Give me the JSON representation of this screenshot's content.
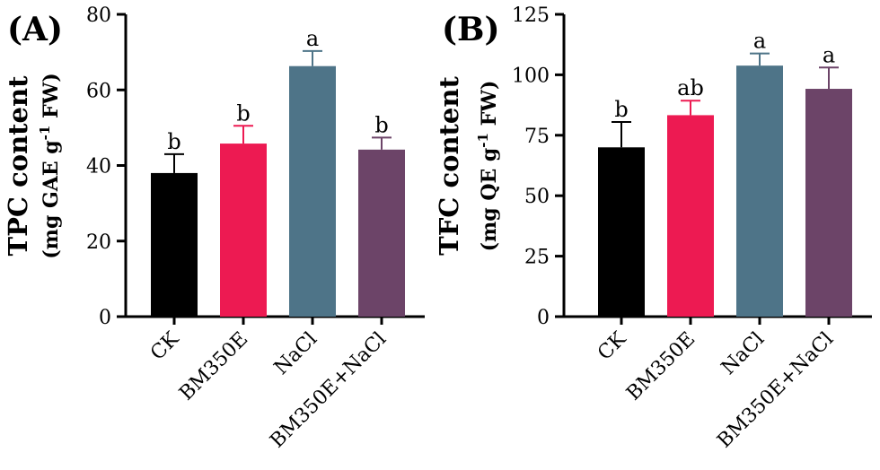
{
  "chart_data": [
    {
      "type": "bar",
      "panel_label": "(A)",
      "ylabel_main": "TPC content",
      "ylabel_unit_pre": "(mg GAE g",
      "ylabel_unit_sup": "-1",
      "ylabel_unit_post": " FW)",
      "categories": [
        "CK",
        "BM350E",
        "NaCl",
        "BM350E+NaCl"
      ],
      "values": [
        38,
        45.8,
        66.3,
        44.2
      ],
      "errors": [
        5,
        4.7,
        4,
        3.2
      ],
      "letters": [
        "b",
        "b",
        "a",
        "b"
      ],
      "colors": [
        "#000000",
        "#ed1a52",
        "#4e7488",
        "#6c4468"
      ],
      "ylim": [
        0,
        80
      ],
      "yticks": [
        0,
        20,
        40,
        60,
        80
      ]
    },
    {
      "type": "bar",
      "panel_label": "(B)",
      "ylabel_main": "TFC content",
      "ylabel_unit_pre": "(mg QE g",
      "ylabel_unit_sup": "-1",
      "ylabel_unit_post": " FW)",
      "categories": [
        "CK",
        "BM350E",
        "NaCl",
        "BM350E+NaCl"
      ],
      "values": [
        70,
        83.3,
        103.8,
        94.2
      ],
      "errors": [
        10.5,
        6,
        5,
        8.8
      ],
      "letters": [
        "b",
        "ab",
        "a",
        "a"
      ],
      "colors": [
        "#000000",
        "#ed1a52",
        "#4e7488",
        "#6c4468"
      ],
      "ylim": [
        0,
        125
      ],
      "yticks": [
        0,
        25,
        50,
        75,
        100,
        125
      ]
    }
  ]
}
